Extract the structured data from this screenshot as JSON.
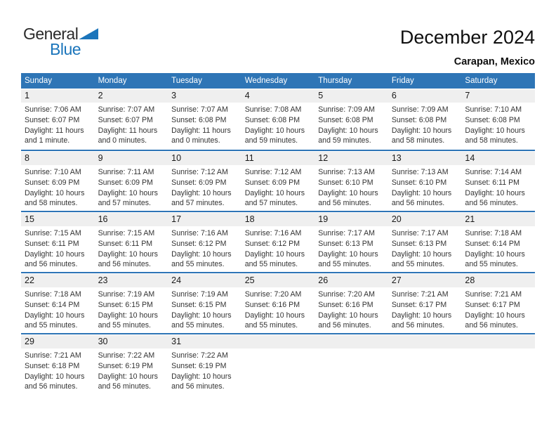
{
  "logo": {
    "part1": "General",
    "part2": "Blue"
  },
  "header": {
    "title": "December 2024",
    "location": "Carapan, Mexico"
  },
  "colors": {
    "header_bar_blue": "#2e75b6",
    "week_divider_blue": "#2e75b6",
    "day_band_gray": "#efefef",
    "logo_blue": "#1b75bb",
    "detail_text": "#333333"
  },
  "calendar": {
    "day_headers": [
      "Sunday",
      "Monday",
      "Tuesday",
      "Wednesday",
      "Thursday",
      "Friday",
      "Saturday"
    ],
    "weeks": [
      [
        {
          "day": "1",
          "sunrise": "Sunrise: 7:06 AM",
          "sunset": "Sunset: 6:07 PM",
          "daylight": [
            "Daylight: 11 hours",
            "and 1 minute."
          ]
        },
        {
          "day": "2",
          "sunrise": "Sunrise: 7:07 AM",
          "sunset": "Sunset: 6:07 PM",
          "daylight": [
            "Daylight: 11 hours",
            "and 0 minutes."
          ]
        },
        {
          "day": "3",
          "sunrise": "Sunrise: 7:07 AM",
          "sunset": "Sunset: 6:08 PM",
          "daylight": [
            "Daylight: 11 hours",
            "and 0 minutes."
          ]
        },
        {
          "day": "4",
          "sunrise": "Sunrise: 7:08 AM",
          "sunset": "Sunset: 6:08 PM",
          "daylight": [
            "Daylight: 10 hours",
            "and 59 minutes."
          ]
        },
        {
          "day": "5",
          "sunrise": "Sunrise: 7:09 AM",
          "sunset": "Sunset: 6:08 PM",
          "daylight": [
            "Daylight: 10 hours",
            "and 59 minutes."
          ]
        },
        {
          "day": "6",
          "sunrise": "Sunrise: 7:09 AM",
          "sunset": "Sunset: 6:08 PM",
          "daylight": [
            "Daylight: 10 hours",
            "and 58 minutes."
          ]
        },
        {
          "day": "7",
          "sunrise": "Sunrise: 7:10 AM",
          "sunset": "Sunset: 6:08 PM",
          "daylight": [
            "Daylight: 10 hours",
            "and 58 minutes."
          ]
        }
      ],
      [
        {
          "day": "8",
          "sunrise": "Sunrise: 7:10 AM",
          "sunset": "Sunset: 6:09 PM",
          "daylight": [
            "Daylight: 10 hours",
            "and 58 minutes."
          ]
        },
        {
          "day": "9",
          "sunrise": "Sunrise: 7:11 AM",
          "sunset": "Sunset: 6:09 PM",
          "daylight": [
            "Daylight: 10 hours",
            "and 57 minutes."
          ]
        },
        {
          "day": "10",
          "sunrise": "Sunrise: 7:12 AM",
          "sunset": "Sunset: 6:09 PM",
          "daylight": [
            "Daylight: 10 hours",
            "and 57 minutes."
          ]
        },
        {
          "day": "11",
          "sunrise": "Sunrise: 7:12 AM",
          "sunset": "Sunset: 6:09 PM",
          "daylight": [
            "Daylight: 10 hours",
            "and 57 minutes."
          ]
        },
        {
          "day": "12",
          "sunrise": "Sunrise: 7:13 AM",
          "sunset": "Sunset: 6:10 PM",
          "daylight": [
            "Daylight: 10 hours",
            "and 56 minutes."
          ]
        },
        {
          "day": "13",
          "sunrise": "Sunrise: 7:13 AM",
          "sunset": "Sunset: 6:10 PM",
          "daylight": [
            "Daylight: 10 hours",
            "and 56 minutes."
          ]
        },
        {
          "day": "14",
          "sunrise": "Sunrise: 7:14 AM",
          "sunset": "Sunset: 6:11 PM",
          "daylight": [
            "Daylight: 10 hours",
            "and 56 minutes."
          ]
        }
      ],
      [
        {
          "day": "15",
          "sunrise": "Sunrise: 7:15 AM",
          "sunset": "Sunset: 6:11 PM",
          "daylight": [
            "Daylight: 10 hours",
            "and 56 minutes."
          ]
        },
        {
          "day": "16",
          "sunrise": "Sunrise: 7:15 AM",
          "sunset": "Sunset: 6:11 PM",
          "daylight": [
            "Daylight: 10 hours",
            "and 56 minutes."
          ]
        },
        {
          "day": "17",
          "sunrise": "Sunrise: 7:16 AM",
          "sunset": "Sunset: 6:12 PM",
          "daylight": [
            "Daylight: 10 hours",
            "and 55 minutes."
          ]
        },
        {
          "day": "18",
          "sunrise": "Sunrise: 7:16 AM",
          "sunset": "Sunset: 6:12 PM",
          "daylight": [
            "Daylight: 10 hours",
            "and 55 minutes."
          ]
        },
        {
          "day": "19",
          "sunrise": "Sunrise: 7:17 AM",
          "sunset": "Sunset: 6:13 PM",
          "daylight": [
            "Daylight: 10 hours",
            "and 55 minutes."
          ]
        },
        {
          "day": "20",
          "sunrise": "Sunrise: 7:17 AM",
          "sunset": "Sunset: 6:13 PM",
          "daylight": [
            "Daylight: 10 hours",
            "and 55 minutes."
          ]
        },
        {
          "day": "21",
          "sunrise": "Sunrise: 7:18 AM",
          "sunset": "Sunset: 6:14 PM",
          "daylight": [
            "Daylight: 10 hours",
            "and 55 minutes."
          ]
        }
      ],
      [
        {
          "day": "22",
          "sunrise": "Sunrise: 7:18 AM",
          "sunset": "Sunset: 6:14 PM",
          "daylight": [
            "Daylight: 10 hours",
            "and 55 minutes."
          ]
        },
        {
          "day": "23",
          "sunrise": "Sunrise: 7:19 AM",
          "sunset": "Sunset: 6:15 PM",
          "daylight": [
            "Daylight: 10 hours",
            "and 55 minutes."
          ]
        },
        {
          "day": "24",
          "sunrise": "Sunrise: 7:19 AM",
          "sunset": "Sunset: 6:15 PM",
          "daylight": [
            "Daylight: 10 hours",
            "and 55 minutes."
          ]
        },
        {
          "day": "25",
          "sunrise": "Sunrise: 7:20 AM",
          "sunset": "Sunset: 6:16 PM",
          "daylight": [
            "Daylight: 10 hours",
            "and 55 minutes."
          ]
        },
        {
          "day": "26",
          "sunrise": "Sunrise: 7:20 AM",
          "sunset": "Sunset: 6:16 PM",
          "daylight": [
            "Daylight: 10 hours",
            "and 56 minutes."
          ]
        },
        {
          "day": "27",
          "sunrise": "Sunrise: 7:21 AM",
          "sunset": "Sunset: 6:17 PM",
          "daylight": [
            "Daylight: 10 hours",
            "and 56 minutes."
          ]
        },
        {
          "day": "28",
          "sunrise": "Sunrise: 7:21 AM",
          "sunset": "Sunset: 6:17 PM",
          "daylight": [
            "Daylight: 10 hours",
            "and 56 minutes."
          ]
        }
      ],
      [
        {
          "day": "29",
          "sunrise": "Sunrise: 7:21 AM",
          "sunset": "Sunset: 6:18 PM",
          "daylight": [
            "Daylight: 10 hours",
            "and 56 minutes."
          ]
        },
        {
          "day": "30",
          "sunrise": "Sunrise: 7:22 AM",
          "sunset": "Sunset: 6:19 PM",
          "daylight": [
            "Daylight: 10 hours",
            "and 56 minutes."
          ]
        },
        {
          "day": "31",
          "sunrise": "Sunrise: 7:22 AM",
          "sunset": "Sunset: 6:19 PM",
          "daylight": [
            "Daylight: 10 hours",
            "and 56 minutes."
          ]
        },
        null,
        null,
        null,
        null
      ]
    ]
  }
}
